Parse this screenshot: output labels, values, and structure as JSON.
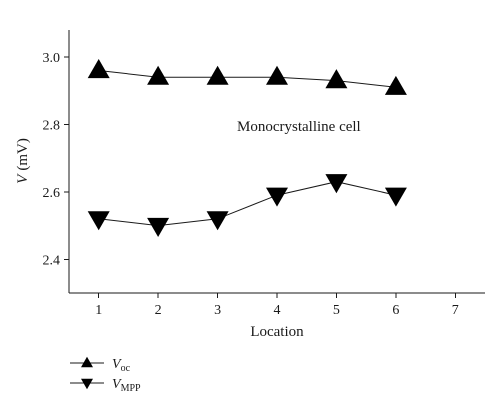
{
  "chart_data": {
    "type": "line",
    "xlabel": "Location",
    "ylabel": "V (mV)",
    "ylabel_parts": {
      "symbol": "V",
      "unit": "(mV)"
    },
    "xlim": [
      0.5,
      7.5
    ],
    "ylim": [
      2.3,
      3.08
    ],
    "xticks": [
      1,
      2,
      3,
      4,
      5,
      6,
      7
    ],
    "xtick_labels": [
      "1",
      "2",
      "3",
      "4",
      "5",
      "6",
      "7"
    ],
    "yticks": [
      2.4,
      2.6,
      2.8,
      3.0
    ],
    "ytick_labels": [
      "2.4",
      "2.6",
      "2.8",
      "3.0"
    ],
    "grid": false,
    "legend_position": "bottom-left, below axes",
    "annotation": "Monocrystalline cell",
    "series": [
      {
        "name": "Voc",
        "name_symbol": "V",
        "name_subscript": "oc",
        "marker": "triangle-up",
        "x": [
          1,
          2,
          3,
          4,
          5,
          6
        ],
        "values": [
          2.96,
          2.94,
          2.94,
          2.94,
          2.93,
          2.91
        ]
      },
      {
        "name": "VMPP",
        "name_symbol": "V",
        "name_subscript": "MPP",
        "marker": "triangle-down",
        "x": [
          1,
          2,
          3,
          4,
          5,
          6
        ],
        "values": [
          2.52,
          2.5,
          2.52,
          2.59,
          2.63,
          2.59
        ]
      }
    ],
    "colors": {
      "line": "#1a1a1a",
      "marker": "#000000"
    }
  }
}
